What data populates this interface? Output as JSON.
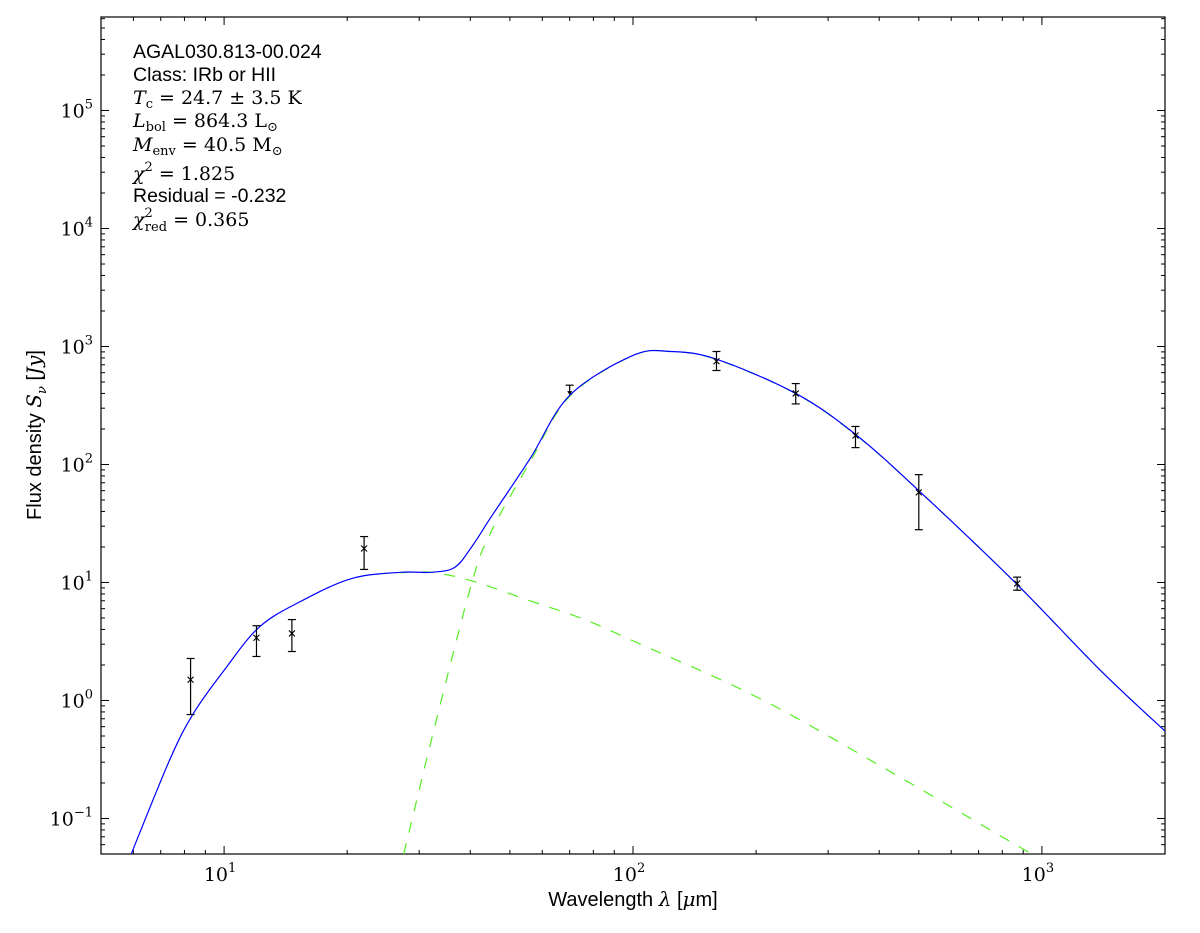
{
  "chart_data": {
    "type": "line",
    "xscale": "log",
    "yscale": "log",
    "xlim": [
      5,
      2000
    ],
    "ylim": [
      0.05,
      620000
    ],
    "grid": false,
    "xlabel": "Wavelength λ [μm]",
    "ylabel": "Flux density S_ν [Jy]",
    "xlabel_parts": {
      "pre": "Wavelength ",
      "sym": "λ",
      "post": " [",
      "unit_sym": "μ",
      "unit": "m]"
    },
    "ylabel_parts": {
      "pre": "Flux density ",
      "sym": "S",
      "sub": "ν",
      "post": " [",
      "unit": "Jy",
      "close": "]"
    },
    "x_ticks": [
      {
        "base": "10",
        "exp": "1",
        "value": 10
      },
      {
        "base": "10",
        "exp": "2",
        "value": 100
      },
      {
        "base": "10",
        "exp": "3",
        "value": 1000
      }
    ],
    "y_ticks": [
      {
        "base": "10",
        "exp": "−1",
        "value": 0.1
      },
      {
        "base": "10",
        "exp": "0",
        "value": 1
      },
      {
        "base": "10",
        "exp": "1",
        "value": 10
      },
      {
        "base": "10",
        "exp": "2",
        "value": 100
      },
      {
        "base": "10",
        "exp": "3",
        "value": 1000
      },
      {
        "base": "10",
        "exp": "4",
        "value": 10000
      },
      {
        "base": "10",
        "exp": "5",
        "value": 100000
      }
    ],
    "annotations": {
      "source": "AGAL030.813-00.024",
      "class": "Class: IRb or HII",
      "tc": {
        "sym": "T",
        "sub": "c",
        "rest": " = 24.7 ± 3.5 K"
      },
      "lbol": {
        "sym": "L",
        "sub": "bol",
        "rest": " = 864.3 L",
        "tail": "⊙"
      },
      "menv": {
        "sym": "M",
        "sub": "env",
        "rest": " = 40.5 M",
        "tail": "⊙"
      },
      "chi2": {
        "sym": "χ",
        "sup": "2",
        "rest": " = 1.825"
      },
      "residual": "Residual = -0.232",
      "chi2red": {
        "sym": "χ",
        "sup": "2",
        "sub": "red",
        "rest": " = 0.365"
      }
    },
    "points": [
      {
        "x": 8.28,
        "y": 1.5,
        "ylo": 0.76,
        "yhi": 2.27
      },
      {
        "x": 12,
        "y": 3.4,
        "ylo": 2.36,
        "yhi": 4.3
      },
      {
        "x": 14.65,
        "y": 3.7,
        "ylo": 2.6,
        "yhi": 4.85
      },
      {
        "x": 22,
        "y": 19.4,
        "ylo": 12.9,
        "yhi": 24.5
      },
      {
        "x": 160,
        "y": 750,
        "ylo": 626,
        "yhi": 907
      },
      {
        "x": 250,
        "y": 400,
        "ylo": 326,
        "yhi": 485
      },
      {
        "x": 350,
        "y": 176,
        "ylo": 139,
        "yhi": 210
      },
      {
        "x": 500,
        "y": 58,
        "ylo": 28,
        "yhi": 82
      },
      {
        "x": 870,
        "y": 9.8,
        "ylo": 8.6,
        "yhi": 11.1
      }
    ],
    "upper_limits": [
      {
        "x": 70,
        "y": 470
      }
    ],
    "series": [
      {
        "style": "solid",
        "color": "#0000ff",
        "points": [
          [
            5.9,
            0.048
          ],
          [
            7.35,
            0.31
          ],
          [
            8.4,
            0.77
          ],
          [
            10,
            1.8
          ],
          [
            12.2,
            4.2
          ],
          [
            15.5,
            7.0
          ],
          [
            20.5,
            10.8
          ],
          [
            27,
            12.2
          ],
          [
            32,
            12.2
          ],
          [
            36.6,
            13.4
          ],
          [
            40.3,
            20
          ],
          [
            45,
            36
          ],
          [
            56,
            112
          ],
          [
            70,
            385
          ],
          [
            100,
            840
          ],
          [
            124,
            907
          ],
          [
            160,
            780
          ],
          [
            250,
            400
          ],
          [
            350,
            180
          ],
          [
            500,
            60
          ],
          [
            865,
            9.8
          ],
          [
            1390,
            1.8
          ],
          [
            2000,
            0.55
          ]
        ]
      },
      {
        "style": "dashed",
        "color": "#55ee22",
        "points": [
          [
            27.5,
            0.05
          ],
          [
            32.7,
            0.59
          ],
          [
            40.3,
            9.8
          ],
          [
            45,
            27
          ],
          [
            56,
            105
          ],
          [
            70,
            378
          ],
          [
            100,
            837
          ],
          [
            124,
            905
          ],
          [
            160,
            778
          ],
          [
            250,
            399
          ],
          [
            350,
            179
          ],
          [
            500,
            60
          ],
          [
            865,
            9.8
          ],
          [
            1390,
            1.8
          ],
          [
            2000,
            0.55
          ]
        ]
      },
      {
        "style": "dashed",
        "color": "#55ee22",
        "points": [
          [
            27,
            12.1
          ],
          [
            32,
            12.2
          ],
          [
            40,
            10.4
          ],
          [
            56,
            7.0
          ],
          [
            76,
            4.86
          ],
          [
            100,
            3.2
          ],
          [
            202,
            1.06
          ],
          [
            402,
            0.28
          ],
          [
            884,
            0.057
          ],
          [
            1000,
            0.045
          ]
        ]
      }
    ]
  }
}
